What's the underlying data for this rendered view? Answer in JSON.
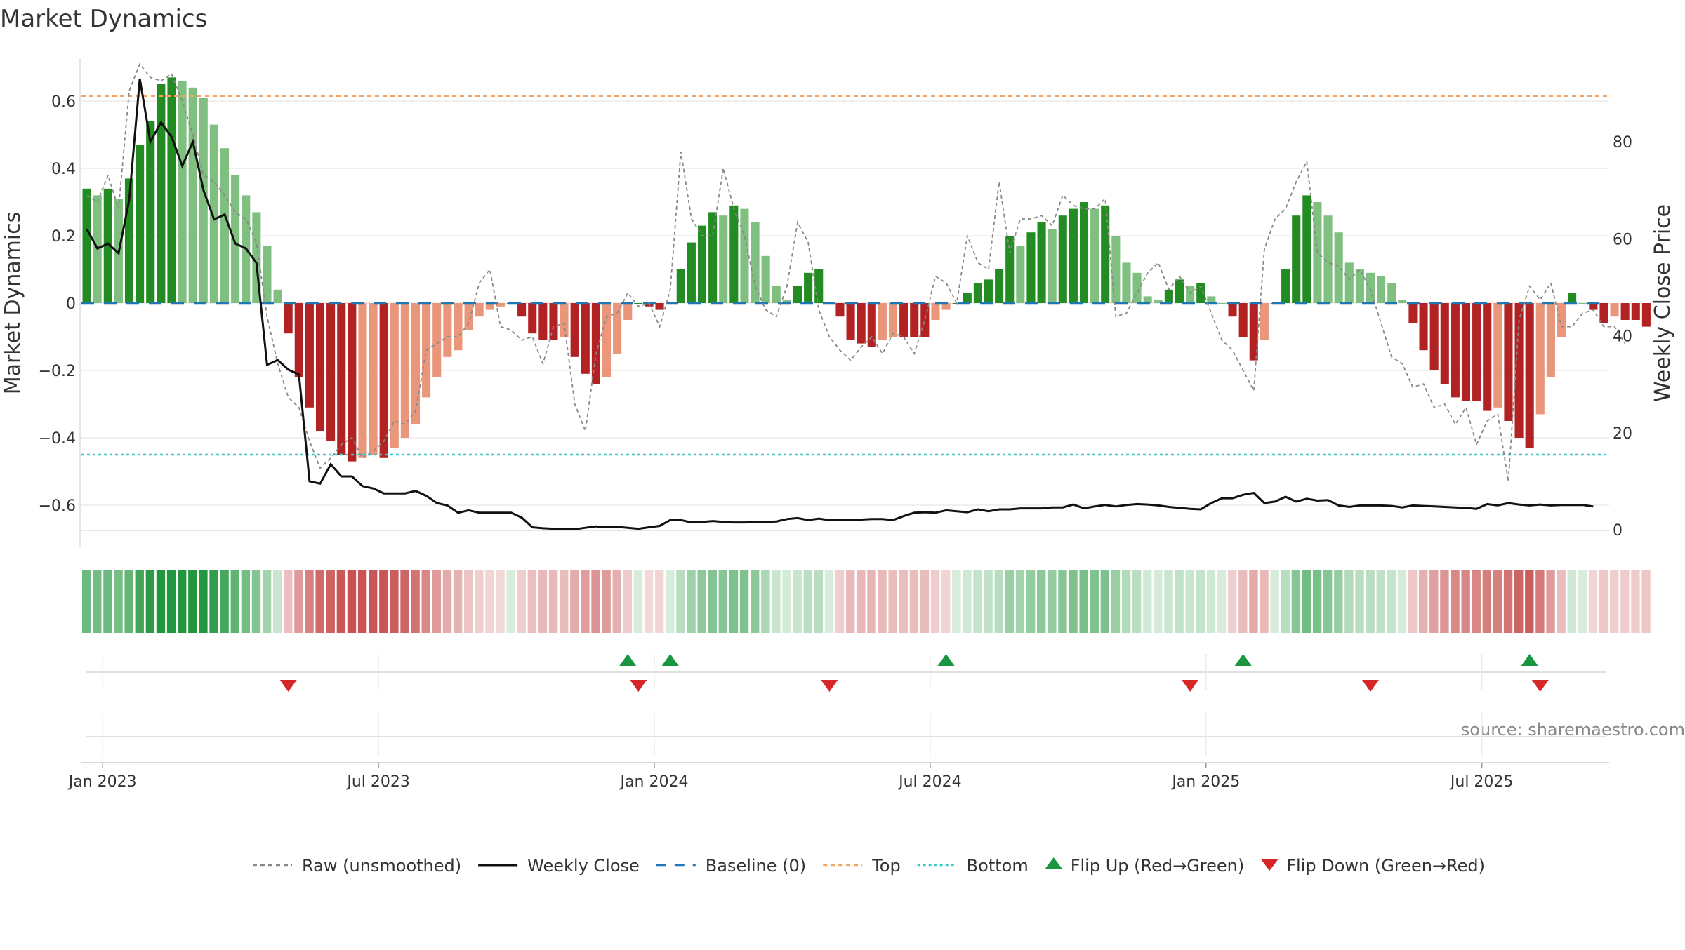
{
  "chart_data": {
    "type": "bar",
    "title": "Market Dynamics",
    "source": "source: sharemaestro.com",
    "ylabel_left": "Market Dynamics",
    "ylabel_right": "Weekly Close Price",
    "ylim_left": [
      -0.67,
      0.72
    ],
    "ylim_right": [
      -1,
      92
    ],
    "left_ticks": [
      {
        "v": 0.6,
        "label": "0.6"
      },
      {
        "v": 0.4,
        "label": "0.4"
      },
      {
        "v": 0.2,
        "label": "0.2"
      },
      {
        "v": 0,
        "label": "0"
      },
      {
        "v": -0.2,
        "label": "−0.2"
      },
      {
        "v": -0.4,
        "label": "−0.4"
      },
      {
        "v": -0.6,
        "label": "−0.6"
      }
    ],
    "right_ticks": [
      {
        "v": 80,
        "label": "80"
      },
      {
        "v": 60,
        "label": "60"
      },
      {
        "v": 40,
        "label": "40"
      },
      {
        "v": 20,
        "label": "20"
      },
      {
        "v": 0,
        "label": "0"
      }
    ],
    "x_ticks": [
      {
        "week": 2,
        "label": "Jan 2023"
      },
      {
        "week": 28,
        "label": "Jul 2023"
      },
      {
        "week": 54,
        "label": "Jan 2024"
      },
      {
        "week": 80,
        "label": "Jul 2024"
      },
      {
        "week": 106,
        "label": "Jan 2025"
      },
      {
        "week": 132,
        "label": "Jul 2025"
      }
    ],
    "x_range_weeks": [
      0,
      144
    ],
    "top_level": 0.615,
    "bottom_level": -0.45,
    "baseline": 0,
    "colors": {
      "strong_green": "#228B22",
      "light_green": "#7FBF7F",
      "strong_red": "#B22222",
      "light_red": "#E9967A",
      "top_line": "#F4A460",
      "bottom_line": "#40C4C4",
      "baseline": "#1F77B4",
      "raw": "#888888",
      "close": "#111111",
      "flip_up": "#1A9641",
      "flip_down": "#D62728"
    },
    "series": [
      {
        "name": "Market Dynamics",
        "values": [
          0.34,
          0.32,
          0.34,
          0.31,
          0.37,
          0.47,
          0.54,
          0.65,
          0.67,
          0.66,
          0.64,
          0.61,
          0.53,
          0.46,
          0.38,
          0.32,
          0.27,
          0.17,
          0.04,
          -0.09,
          -0.22,
          -0.31,
          -0.38,
          -0.41,
          -0.45,
          -0.47,
          -0.46,
          -0.45,
          -0.46,
          -0.43,
          -0.4,
          -0.36,
          -0.28,
          -0.22,
          -0.16,
          -0.14,
          -0.08,
          -0.04,
          -0.02,
          -0.01,
          0.0,
          -0.04,
          -0.09,
          -0.11,
          -0.11,
          -0.1,
          -0.16,
          -0.21,
          -0.24,
          -0.22,
          -0.15,
          -0.05,
          0.0,
          -0.01,
          -0.02,
          0.0,
          0.1,
          0.18,
          0.23,
          0.27,
          0.26,
          0.29,
          0.28,
          0.24,
          0.14,
          0.05,
          0.01,
          0.05,
          0.09,
          0.1,
          0.0,
          -0.04,
          -0.11,
          -0.12,
          -0.13,
          -0.11,
          -0.1,
          -0.1,
          -0.1,
          -0.1,
          -0.05,
          -0.02,
          0.0,
          0.03,
          0.06,
          0.07,
          0.1,
          0.2,
          0.17,
          0.21,
          0.24,
          0.22,
          0.26,
          0.28,
          0.3,
          0.28,
          0.29,
          0.2,
          0.12,
          0.09,
          0.02,
          0.01,
          0.04,
          0.07,
          0.05,
          0.06,
          0.02,
          0.0,
          -0.04,
          -0.1,
          -0.17,
          -0.11,
          0.0,
          0.1,
          0.26,
          0.32,
          0.3,
          0.26,
          0.21,
          0.12,
          0.1,
          0.09,
          0.08,
          0.06,
          0.01,
          -0.06,
          -0.14,
          -0.2,
          -0.24,
          -0.28,
          -0.29,
          -0.29,
          -0.32,
          -0.31,
          -0.35,
          -0.4,
          -0.43,
          -0.33,
          -0.22,
          -0.1,
          0.03,
          0.0,
          -0.02,
          -0.06,
          -0.04,
          -0.05,
          -0.05,
          -0.07
        ]
      },
      {
        "name": "Raw (unsmoothed)",
        "values": [
          0.32,
          0.3,
          0.38,
          0.28,
          0.63,
          0.71,
          0.67,
          0.66,
          0.68,
          0.6,
          0.5,
          0.38,
          0.36,
          0.32,
          0.27,
          0.25,
          0.18,
          -0.04,
          -0.18,
          -0.28,
          -0.31,
          -0.41,
          -0.49,
          -0.46,
          -0.42,
          -0.4,
          -0.46,
          -0.44,
          -0.41,
          -0.35,
          -0.36,
          -0.32,
          -0.14,
          -0.12,
          -0.1,
          -0.1,
          -0.06,
          0.06,
          0.1,
          -0.07,
          -0.08,
          -0.11,
          -0.1,
          -0.18,
          -0.07,
          -0.06,
          -0.3,
          -0.38,
          -0.15,
          -0.04,
          -0.03,
          0.03,
          -0.01,
          0.0,
          -0.07,
          0.04,
          0.45,
          0.25,
          0.2,
          0.2,
          0.4,
          0.28,
          0.2,
          0.05,
          -0.02,
          -0.04,
          0.05,
          0.24,
          0.18,
          -0.02,
          -0.1,
          -0.14,
          -0.17,
          -0.13,
          -0.1,
          -0.15,
          -0.09,
          -0.1,
          -0.15,
          -0.05,
          0.08,
          0.06,
          0.0,
          0.2,
          0.12,
          0.1,
          0.36,
          0.15,
          0.25,
          0.25,
          0.26,
          0.23,
          0.32,
          0.29,
          0.28,
          0.28,
          0.31,
          -0.04,
          -0.03,
          0.03,
          0.09,
          0.12,
          0.04,
          0.08,
          0.03,
          0.05,
          -0.03,
          -0.11,
          -0.14,
          -0.2,
          -0.26,
          0.16,
          0.25,
          0.28,
          0.36,
          0.42,
          0.15,
          0.12,
          0.11,
          0.07,
          0.1,
          0.04,
          -0.06,
          -0.16,
          -0.18,
          -0.25,
          -0.24,
          -0.31,
          -0.3,
          -0.36,
          -0.31,
          -0.42,
          -0.35,
          -0.33,
          -0.53,
          -0.05,
          0.05,
          0.01,
          0.06,
          -0.07,
          -0.07,
          -0.03,
          -0.02,
          -0.07,
          -0.07,
          -0.12
        ]
      },
      {
        "name": "Weekly Close",
        "values": [
          62,
          58,
          59,
          57,
          68,
          93,
          80,
          84,
          81,
          75,
          80,
          70,
          64,
          65,
          59,
          58,
          55,
          34,
          35,
          33,
          32,
          10,
          9.5,
          13.5,
          11,
          11,
          9,
          8.5,
          7.5,
          7.5,
          7.5,
          8,
          7,
          5.5,
          5,
          3.5,
          4,
          3.5,
          3.5,
          3.5,
          3.5,
          2.5,
          0.5,
          0.3,
          0.2,
          0.1,
          0.1,
          0.4,
          0.7,
          0.5,
          0.6,
          0.4,
          0.2,
          0.5,
          0.8,
          2,
          2,
          1.5,
          1.6,
          1.8,
          1.6,
          1.5,
          1.5,
          1.6,
          1.6,
          1.7,
          2.2,
          2.4,
          2,
          2.3,
          2,
          2,
          2.1,
          2.1,
          2.2,
          2.2,
          2,
          2.8,
          3.5,
          3.6,
          3.5,
          4,
          3.8,
          3.6,
          4.2,
          3.8,
          4.2,
          4.2,
          4.4,
          4.4,
          4.4,
          4.6,
          4.6,
          5.2,
          4.4,
          4.8,
          5.1,
          4.8,
          5.1,
          5.3,
          5.2,
          5,
          4.7,
          4.5,
          4.3,
          4.2,
          5.5,
          6.5,
          6.5,
          7.2,
          7.6,
          5.5,
          5.8,
          6.8,
          5.8,
          6.4,
          6,
          6.1,
          5,
          4.7,
          5,
          5,
          5,
          4.9,
          4.6,
          5,
          4.9,
          4.8,
          4.7,
          4.6,
          4.5,
          4.3,
          5.3,
          5,
          5.5,
          5.2,
          5,
          5.2,
          5,
          5.1,
          5.1,
          5.1,
          4.8
        ]
      }
    ],
    "flip_up_weeks": [
      51,
      55,
      81,
      109,
      136
    ],
    "flip_down_weeks": [
      19,
      52,
      70,
      104,
      121,
      137
    ],
    "legend": [
      {
        "label": "Raw (unsmoothed)",
        "kind": "dashed",
        "color": "#888888"
      },
      {
        "label": "Weekly Close",
        "kind": "solid",
        "color": "#111111"
      },
      {
        "label": "Baseline (0)",
        "kind": "longdash",
        "color": "#1F77B4"
      },
      {
        "label": "Top",
        "kind": "dashed",
        "color": "#F4A460"
      },
      {
        "label": "Bottom",
        "kind": "dotted",
        "color": "#40C4C4"
      },
      {
        "label": "Flip Up (Red→Green)",
        "kind": "tri-up",
        "color": "#1A9641"
      },
      {
        "label": "Flip Down (Green→Red)",
        "kind": "tri-down",
        "color": "#D62728"
      }
    ]
  }
}
